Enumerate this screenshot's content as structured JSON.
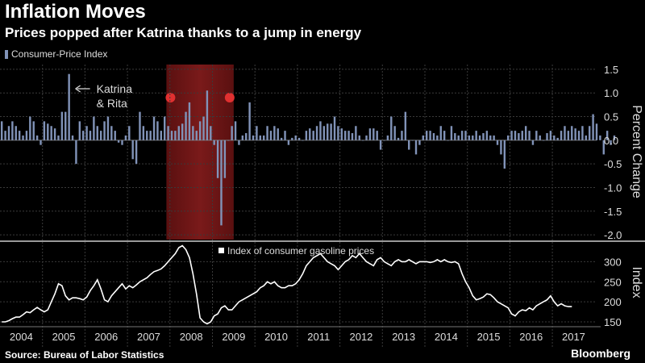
{
  "header": {
    "title": "Inflation Moves",
    "subtitle": "Prices popped after Katrina thanks to a jump in energy"
  },
  "footer": {
    "source": "Source: Bureau of Labor Statistics",
    "brand": "Bloomberg"
  },
  "colors": {
    "background": "#000000",
    "cpi_bars": "#8193b8",
    "gas_line": "#ffffff",
    "recession_shade": "#7a1a1a",
    "recession_marker": "#e03030",
    "grid": "#3a3a3a",
    "separator": "#cccccc"
  },
  "chart_data": [
    {
      "type": "bar",
      "legend": "Consumer-Price Index",
      "ylabel": "Percent Change",
      "ylim": [
        -2.1,
        1.6
      ],
      "yticks": [
        1.5,
        1.0,
        0.5,
        0.0,
        -0.5,
        -1.0,
        -1.5,
        -2.0
      ],
      "ytick_labels": [
        "1.5",
        "1.0",
        "0.5",
        "0.0",
        "-0.5",
        "-1.0",
        "-1.5",
        "-2.0"
      ],
      "x_start": "2004-01",
      "frequency": "monthly",
      "values": [
        0.4,
        0.2,
        0.3,
        0.4,
        0.3,
        0.2,
        0.1,
        0.2,
        0.5,
        0.4,
        0.1,
        -0.1,
        0.4,
        0.35,
        0.3,
        0.25,
        0.1,
        0.6,
        0.6,
        1.4,
        0.1,
        -0.5,
        0.4,
        0.2,
        0.3,
        0.2,
        0.5,
        0.3,
        0.2,
        0.4,
        0.5,
        0.3,
        0.2,
        -0.05,
        -0.1,
        0.1,
        0.3,
        -0.4,
        -0.5,
        0.6,
        0.3,
        0.2,
        0.2,
        0.5,
        0.4,
        0.2,
        0.5,
        0.3,
        0.2,
        0.2,
        0.3,
        0.35,
        0.6,
        0.8,
        0.3,
        0.2,
        0.4,
        0.5,
        1.05,
        0.3,
        -0.1,
        -0.8,
        -1.8,
        -0.8,
        0.0,
        0.3,
        0.4,
        -0.1,
        0.1,
        0.15,
        0.8,
        0.1,
        0.3,
        0.1,
        0.1,
        0.3,
        0.2,
        0.3,
        0.25,
        0.05,
        0.2,
        -0.1,
        0.05,
        0.1,
        0.05,
        0.0,
        0.2,
        0.25,
        0.2,
        0.3,
        0.4,
        0.3,
        0.35,
        0.35,
        0.5,
        0.3,
        0.25,
        0.2,
        0.2,
        0.15,
        0.3,
        0.1,
        0.0,
        0.1,
        0.25,
        0.25,
        0.2,
        -0.2,
        0.0,
        0.1,
        0.5,
        0.3,
        0.05,
        0.2,
        0.6,
        -0.2,
        0.0,
        -0.3,
        -0.1,
        0.1,
        0.2,
        0.2,
        0.15,
        0.1,
        0.3,
        0.2,
        0.0,
        0.3,
        0.15,
        0.1,
        0.2,
        0.2,
        0.1,
        0.1,
        0.2,
        0.1,
        0.15,
        0.2,
        0.1,
        0.1,
        -0.1,
        -0.3,
        -0.6,
        0.1,
        0.2,
        0.2,
        0.15,
        0.2,
        0.3,
        0.2,
        -0.1,
        0.2,
        0.1,
        0.0,
        0.15,
        0.2,
        0.1,
        0.05,
        0.2,
        0.3,
        0.2,
        0.3,
        0.25,
        0.2,
        0.3,
        0.1,
        0.3,
        0.55,
        0.35,
        0.1,
        -0.3,
        0.2,
        -0.1,
        0.1
      ],
      "recession": {
        "start": "2007-12",
        "end": "2009-06"
      },
      "annotations": [
        {
          "text_line1": "Katrina",
          "text_line2": "& Rita",
          "x": "2005-08",
          "y": 1.3
        }
      ]
    },
    {
      "type": "line",
      "legend": "Index of consumer gasoline prices",
      "ylabel": "Index",
      "ylim": [
        140,
        345
      ],
      "yticks": [
        150,
        200,
        250,
        300
      ],
      "ytick_labels": [
        "150",
        "200",
        "250",
        "300"
      ],
      "x_start": "2004-01",
      "frequency": "monthly",
      "values": [
        150,
        150,
        153,
        158,
        162,
        162,
        168,
        175,
        173,
        180,
        186,
        180,
        175,
        180,
        200,
        220,
        245,
        240,
        215,
        205,
        210,
        210,
        208,
        205,
        212,
        228,
        240,
        255,
        232,
        205,
        200,
        215,
        225,
        235,
        245,
        232,
        240,
        235,
        242,
        250,
        255,
        260,
        268,
        275,
        278,
        282,
        290,
        300,
        310,
        320,
        335,
        340,
        330,
        310,
        270,
        220,
        160,
        150,
        145,
        150,
        165,
        170,
        185,
        190,
        180,
        180,
        190,
        200,
        205,
        210,
        215,
        220,
        225,
        235,
        240,
        250,
        245,
        250,
        240,
        235,
        235,
        240,
        240,
        245,
        255,
        270,
        290,
        300,
        310,
        315,
        320,
        310,
        300,
        295,
        290,
        280,
        290,
        300,
        305,
        315,
        310,
        320,
        310,
        300,
        295,
        290,
        305,
        310,
        300,
        295,
        290,
        300,
        305,
        300,
        300,
        305,
        300,
        295,
        300,
        300,
        300,
        298,
        300,
        305,
        300,
        305,
        300,
        298,
        300,
        295,
        270,
        250,
        235,
        215,
        205,
        208,
        212,
        220,
        218,
        210,
        200,
        195,
        190,
        185,
        170,
        165,
        175,
        180,
        178,
        185,
        180,
        190,
        195,
        200,
        205,
        215,
        200,
        190,
        195,
        190,
        188,
        188
      ],
      "recession": {
        "start": "2007-12",
        "end": "2009-06"
      }
    }
  ],
  "x_axis": {
    "labels": [
      "2004",
      "2005",
      "2006",
      "2007",
      "2008",
      "2009",
      "2010",
      "2011",
      "2012",
      "2013",
      "2014",
      "2015",
      "2016",
      "2017"
    ]
  }
}
